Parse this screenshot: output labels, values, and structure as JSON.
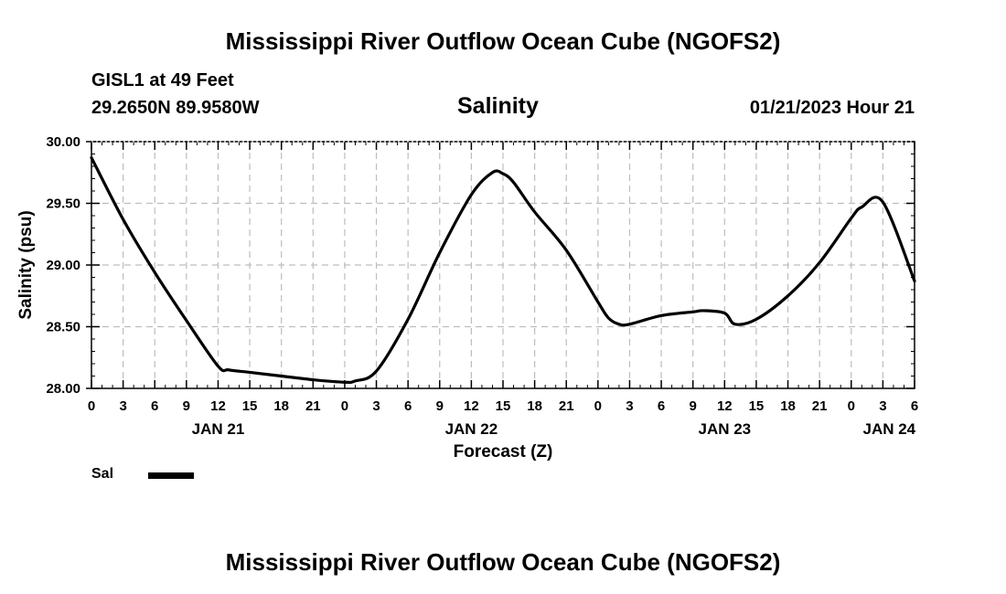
{
  "header": {
    "title": "Mississippi River Outflow Ocean Cube (NGOFS2)",
    "station": "GISL1 at 49 Feet",
    "coords": "29.2650N  89.9580W",
    "variable": "Salinity",
    "datetime": "01/21/2023 Hour 21"
  },
  "footer": {
    "title": "Mississippi River Outflow Ocean Cube (NGOFS2)"
  },
  "legend": {
    "label": "Sal"
  },
  "colors": {
    "line": "#000000",
    "grid": "#bdbdbd"
  },
  "chart_data": {
    "type": "line",
    "title": "Salinity",
    "xlabel": "Forecast (Z)",
    "ylabel": "Salinity (psu)",
    "xlim": [
      0,
      78
    ],
    "ylim": [
      28.0,
      30.0
    ],
    "x_ticks": [
      0,
      3,
      6,
      9,
      12,
      15,
      18,
      21,
      24,
      27,
      30,
      33,
      36,
      39,
      42,
      45,
      48,
      51,
      54,
      57,
      60,
      63,
      66,
      69,
      72,
      75,
      78
    ],
    "x_tick_labels": [
      "0",
      "3",
      "6",
      "9",
      "12",
      "15",
      "18",
      "21",
      "0",
      "3",
      "6",
      "9",
      "12",
      "15",
      "18",
      "21",
      "0",
      "3",
      "6",
      "9",
      "12",
      "15",
      "18",
      "21",
      "0",
      "3",
      "6"
    ],
    "y_ticks": [
      28.0,
      28.5,
      29.0,
      29.5,
      30.0
    ],
    "y_tick_labels": [
      "28.00",
      "28.50",
      "29.00",
      "29.50",
      "30.00"
    ],
    "date_labels": [
      {
        "x": 12,
        "label": "JAN 21"
      },
      {
        "x": 36,
        "label": "JAN 22"
      },
      {
        "x": 60,
        "label": "JAN 23"
      },
      {
        "x": 75.6,
        "label": "JAN 24"
      }
    ],
    "grid": true,
    "series": [
      {
        "name": "Sal",
        "x": [
          0,
          3,
          6,
          9,
          12,
          13,
          15,
          18,
          21,
          24,
          25,
          27,
          30,
          33,
          36,
          38,
          39,
          40,
          42,
          45,
          48,
          49,
          50,
          51,
          54,
          57,
          58,
          60,
          61,
          63,
          66,
          69,
          72,
          73,
          75,
          78
        ],
        "y": [
          29.87,
          29.37,
          28.94,
          28.55,
          28.18,
          28.15,
          28.13,
          28.1,
          28.07,
          28.05,
          28.06,
          28.14,
          28.56,
          29.1,
          29.57,
          29.75,
          29.74,
          29.67,
          29.43,
          29.12,
          28.7,
          28.57,
          28.52,
          28.52,
          28.59,
          28.62,
          28.63,
          28.61,
          28.52,
          28.56,
          28.75,
          29.02,
          29.38,
          29.47,
          29.51,
          28.87
        ]
      }
    ]
  }
}
